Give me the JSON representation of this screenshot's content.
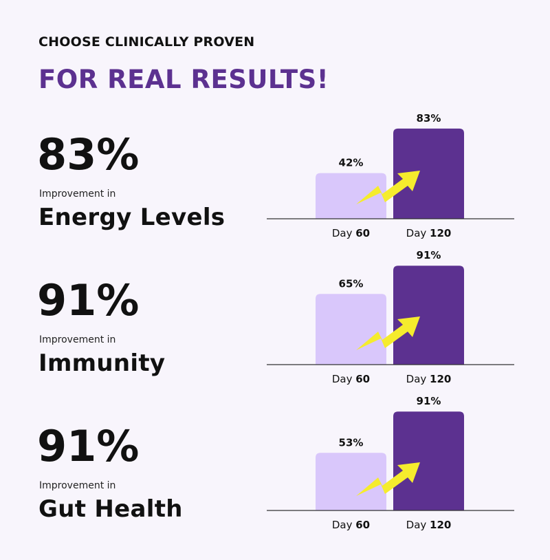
{
  "header": {
    "eyebrow": "CHOOSE CLINICALLY PROVEN",
    "headline": "FOR REAL RESULTS!"
  },
  "stats": [
    {
      "value": "83%",
      "subtitle": "Improvement in",
      "metric": "Energy Levels"
    },
    {
      "value": "91%",
      "subtitle": "Improvement in",
      "metric": "Immunity"
    },
    {
      "value": "91%",
      "subtitle": "Improvement in",
      "metric": "Gut Health"
    }
  ],
  "colors": {
    "background": "#f8f5fc",
    "accent": "#5c3190",
    "bar_day60": "#d9c7fb",
    "bar_day120": "#5c3190",
    "arrow": "#f5ec2d",
    "axis": "#333333"
  },
  "icons": {
    "growth_arrow": "zigzag-up-arrow-icon"
  },
  "chart_data": [
    {
      "type": "bar",
      "title": "Energy Levels",
      "categories": [
        [
          "Day ",
          "60"
        ],
        [
          "Day ",
          "120"
        ]
      ],
      "values": [
        42,
        83
      ],
      "labels": [
        "42%",
        "83%"
      ],
      "ylim": [
        0,
        100
      ],
      "grid": false
    },
    {
      "type": "bar",
      "title": "Immunity",
      "categories": [
        [
          "Day ",
          "60"
        ],
        [
          "Day ",
          "120"
        ]
      ],
      "values": [
        65,
        91
      ],
      "labels": [
        "65%",
        "91%"
      ],
      "ylim": [
        0,
        100
      ],
      "grid": false
    },
    {
      "type": "bar",
      "title": "Gut Health",
      "categories": [
        [
          "Day ",
          "60"
        ],
        [
          "Day ",
          "120"
        ]
      ],
      "values": [
        53,
        91
      ],
      "labels": [
        "53%",
        "91%"
      ],
      "ylim": [
        0,
        100
      ],
      "grid": false
    }
  ]
}
